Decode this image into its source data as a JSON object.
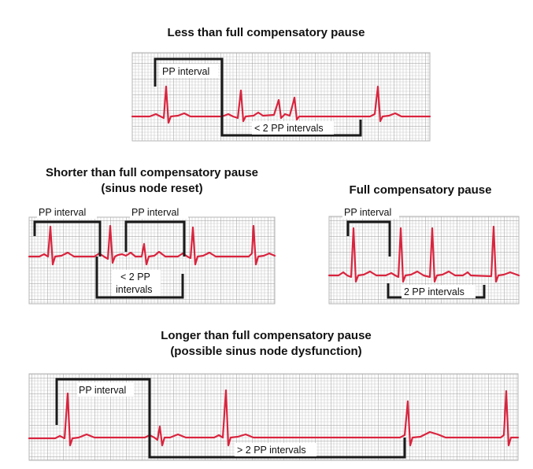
{
  "colors": {
    "trace": "#d9243e",
    "grid_minor": "#c9c9c9",
    "grid_major": "#9a9a9a",
    "bracket": "#1a1a1a",
    "strip_border": "#b5b5b5",
    "label_bg": "#ffffff",
    "text": "#111111"
  },
  "panels": {
    "less": {
      "title": "Less than full compensatory pause",
      "bracket_top_label": "PP interval",
      "bracket_bottom_label": "< 2 PP intervals"
    },
    "shorter": {
      "title_line1": "Shorter than full compensatory pause",
      "title_line2": "(sinus node reset)",
      "bracket_top_label_1": "PP interval",
      "bracket_top_label_2": "PP interval",
      "bracket_bottom_label_line1": "< 2 PP",
      "bracket_bottom_label_line2": "intervals"
    },
    "full": {
      "title": "Full compensatory pause",
      "bracket_top_label": "PP interval",
      "bracket_bottom_label": "2 PP intervals"
    },
    "longer": {
      "title_line1": "Longer than full compensatory pause",
      "title_line2": "(possible sinus node dysfunction)",
      "bracket_top_label": "PP interval",
      "bracket_bottom_label": "> 2 PP intervals"
    }
  }
}
